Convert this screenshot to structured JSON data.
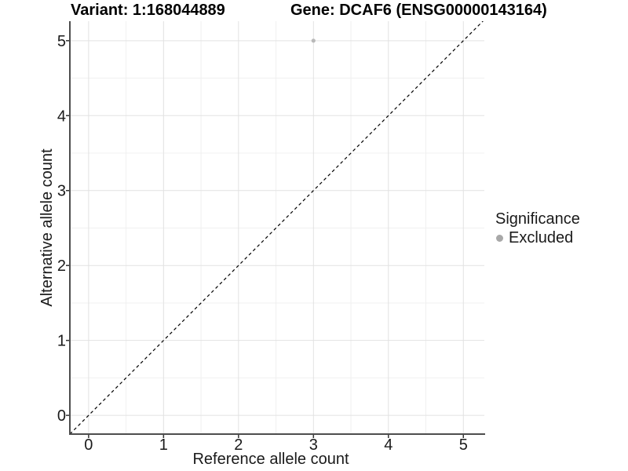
{
  "titles": {
    "variant": "Variant: 1:168044889",
    "gene": "Gene: DCAF6 (ENSG00000143164)"
  },
  "chart_data": {
    "type": "scatter",
    "title_left": "Variant: 1:168044889",
    "title_right": "Gene: DCAF6 (ENSG00000143164)",
    "xlabel": "Reference allele count",
    "ylabel": "Alternative allele count",
    "xlim": [
      -0.25,
      5.28
    ],
    "ylim": [
      -0.25,
      5.26
    ],
    "xticks": [
      0,
      1,
      2,
      3,
      4,
      5
    ],
    "yticks": [
      0,
      1,
      2,
      3,
      4,
      5
    ],
    "grid": "major-and-minor",
    "points": [
      {
        "x": 3,
        "y": 5,
        "significance": "Excluded"
      }
    ],
    "abline": {
      "slope": 1,
      "intercept": 0,
      "style": "dashed"
    },
    "legend": {
      "position": "right",
      "title": "Significance",
      "items": [
        {
          "label": "Excluded",
          "color": "#a8a8a8",
          "marker": "circle"
        }
      ]
    },
    "colors": {
      "background": "#ffffff",
      "grid_major": "#e2e2e2",
      "grid_minor": "#f0f0f0",
      "axis_line": "#4d4d4d",
      "tick_mark": "#333333",
      "tick_text": "#1a1a1a",
      "abline": "#000000",
      "point": "#b9b9b9"
    }
  }
}
